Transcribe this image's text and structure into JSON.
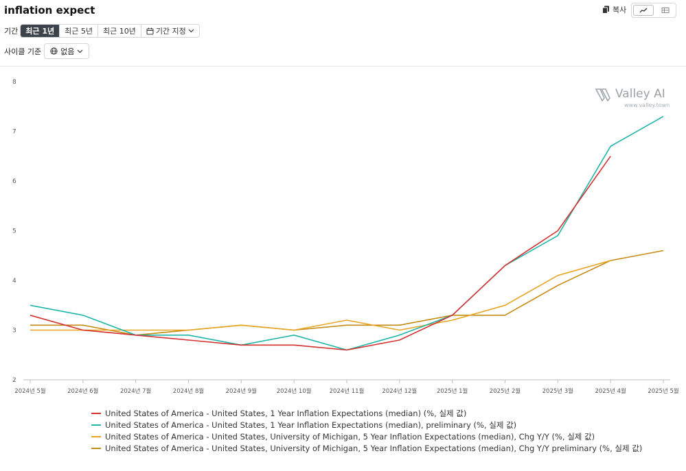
{
  "header": {
    "title": "inflation expect",
    "copy_label": "복사"
  },
  "controls": {
    "period_label": "기간",
    "period_options": [
      "최근 1년",
      "최근 5년",
      "최근 10년"
    ],
    "custom_period_label": "기간 지정",
    "cycle_label": "사이클 기준",
    "cycle_value": "없음"
  },
  "watermark": {
    "brand": "Valley AI",
    "url": "www.valley.town"
  },
  "chart_data": {
    "type": "line",
    "categories": [
      "2024년 5월",
      "2024년 6월",
      "2024년 7월",
      "2024년 8월",
      "2024년 9월",
      "2024년 10월",
      "2024년 11월",
      "2024년 12월",
      "2025년 1월",
      "2025년 2월",
      "2025년 3월",
      "2025년 4월",
      "2025년 5월"
    ],
    "ylim": [
      2,
      8
    ],
    "yticks": [
      "2",
      "3",
      "4",
      "5",
      "6",
      "7",
      "8"
    ],
    "grid": false,
    "legend_position": "bottom",
    "series": [
      {
        "name": "United States of America - United States, 1 Year Inflation Expectations (median) (%, 실제 값)",
        "color": "#d32f2f",
        "values": [
          3.3,
          3.0,
          2.9,
          2.8,
          2.7,
          2.7,
          2.6,
          2.8,
          3.3,
          4.3,
          5.0,
          6.5,
          null
        ]
      },
      {
        "name": "United States of America - United States, 1 Year Inflation Expectations (median), preliminary (%, 실제 값)",
        "color": "#1fb5a8",
        "values": [
          3.5,
          3.3,
          2.9,
          2.9,
          2.7,
          2.9,
          2.6,
          2.9,
          3.3,
          4.3,
          4.9,
          6.7,
          7.3
        ]
      },
      {
        "name": "United States of America - United States, University of Michigan, 5 Year Inflation Expectations (median), Chg Y/Y (%, 실제 값)",
        "color": "#e8a524",
        "values": [
          3.0,
          3.0,
          3.0,
          3.0,
          3.1,
          3.0,
          3.2,
          3.0,
          3.2,
          3.5,
          4.1,
          4.4,
          null
        ]
      },
      {
        "name": "United States of America - United States, University of Michigan, 5 Year Inflation Expectations (median), Chg Y/Y preliminary (%, 실제 값)",
        "color": "#c48a12",
        "values": [
          3.1,
          3.1,
          2.9,
          3.0,
          3.1,
          3.0,
          3.1,
          3.1,
          3.3,
          3.3,
          3.9,
          4.4,
          4.6
        ]
      }
    ]
  }
}
